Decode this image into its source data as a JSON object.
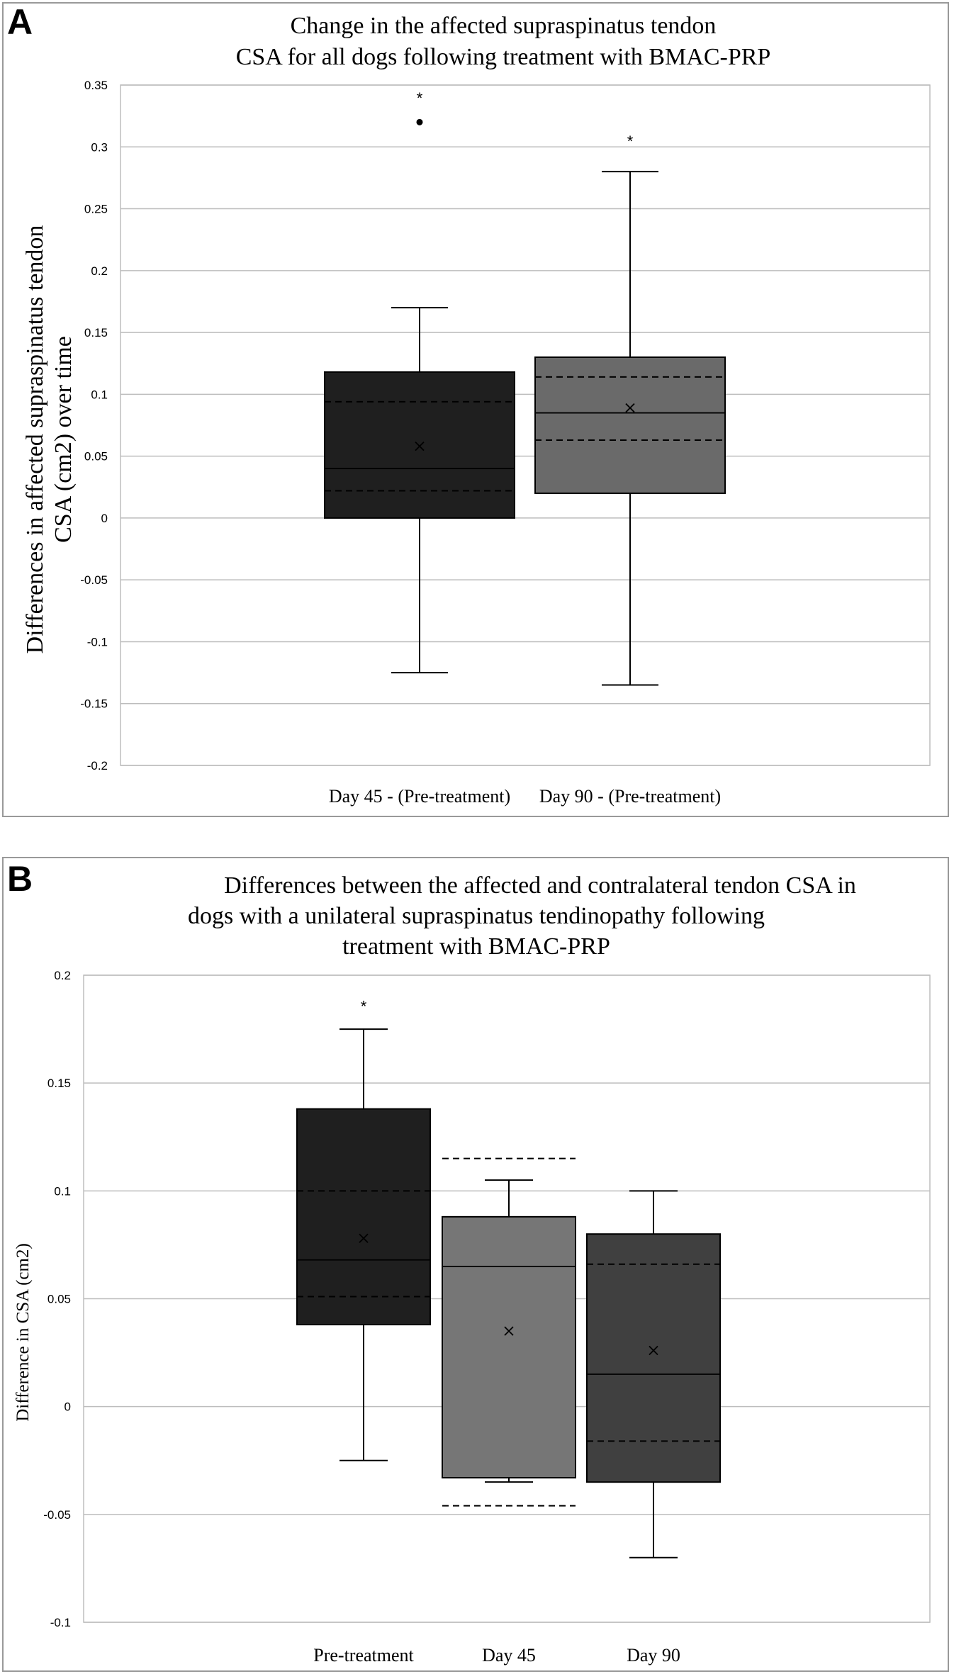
{
  "chart_data": [
    {
      "panel": "A",
      "type": "box",
      "title_lines": [
        "Change in the affected supraspinatus tendon",
        "CSA for all dogs following treatment with BMAC-PRP"
      ],
      "ylabel_lines": [
        "Differences in affected supraspinatus tendon",
        "CSA (cm2) over time"
      ],
      "xlabel": "",
      "ylim": [
        -0.2,
        0.35
      ],
      "yticks": [
        -0.2,
        -0.15,
        -0.1,
        -0.05,
        0,
        0.05,
        0.1,
        0.15,
        0.2,
        0.25,
        0.3,
        0.35
      ],
      "ytick_labels": [
        "-0.2",
        "-0.15",
        "-0.1",
        "-0.05",
        "0",
        "0.05",
        "0.1",
        "0.15",
        "0.2",
        "0.25",
        "0.3",
        "0.35"
      ],
      "grid": true,
      "categories": [
        "Day 45 - (Pre-treatment)",
        "Day 90 - (Pre-treatment)"
      ],
      "boxes": [
        {
          "name": "Day 45 - (Pre-treatment)",
          "color": "#1f1f1f",
          "min": -0.125,
          "q1": 0.0,
          "median": 0.04,
          "q3": 0.118,
          "max": 0.17,
          "mean": 0.058,
          "ci": [
            0.022,
            0.094
          ],
          "outliers": [
            0.32
          ],
          "star": "*",
          "star_value": 0.342
        },
        {
          "name": "Day 90 - (Pre-treatment)",
          "color": "#6a6a6a",
          "min": -0.135,
          "q1": 0.02,
          "median": 0.085,
          "q3": 0.13,
          "max": 0.28,
          "mean": 0.089,
          "ci": [
            0.063,
            0.114
          ],
          "outliers": [],
          "star": "*",
          "star_value": 0.307
        }
      ]
    },
    {
      "panel": "B",
      "type": "box",
      "title_lines": [
        "Differences between the affected and contralateral tendon  CSA in",
        "dogs with a unilateral supraspinatus tendinopathy following",
        "treatment with BMAC-PRP"
      ],
      "ylabel_lines": [
        "Difference in CSA (cm2)"
      ],
      "xlabel": "",
      "ylim": [
        -0.1,
        0.2
      ],
      "yticks": [
        -0.1,
        -0.05,
        0,
        0.05,
        0.1,
        0.15,
        0.2
      ],
      "ytick_labels": [
        "-0.1",
        "-0.05",
        "0",
        "0.05",
        "0.1",
        "0.15",
        "0.2"
      ],
      "grid": true,
      "categories": [
        "Pre-treatment",
        "Day 45",
        "Day 90"
      ],
      "boxes": [
        {
          "name": "Pre-treatment",
          "color": "#1f1f1f",
          "min": -0.025,
          "q1": 0.038,
          "median": 0.068,
          "q3": 0.138,
          "max": 0.175,
          "mean": 0.078,
          "ci": [
            0.051,
            0.1
          ],
          "outliers": [],
          "star": "*",
          "star_value": 0.187
        },
        {
          "name": "Day 45",
          "color": "#767676",
          "min": -0.035,
          "q1": -0.033,
          "median": 0.065,
          "q3": 0.088,
          "max": 0.105,
          "mean": 0.035,
          "ci": [
            -0.046,
            0.115
          ],
          "outliers": [],
          "star": "",
          "star_value": null
        },
        {
          "name": "Day 90",
          "color": "#404040",
          "min": -0.07,
          "q1": -0.035,
          "median": 0.015,
          "q3": 0.08,
          "max": 0.1,
          "mean": 0.026,
          "ci": [
            -0.016,
            0.066
          ],
          "outliers": [],
          "star": "",
          "star_value": null
        }
      ]
    }
  ],
  "panel_letters": [
    "A",
    "B"
  ]
}
